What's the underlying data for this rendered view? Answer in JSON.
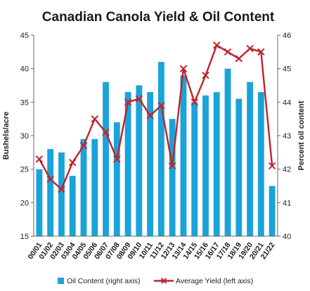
{
  "chart_data": {
    "type": "bar+line",
    "title": "Canadian Canola Yield & Oil Content",
    "categories": [
      "00/01",
      "01/02",
      "02/03",
      "03/04",
      "04/05",
      "05/06",
      "06/07",
      "07/08",
      "08/09",
      "09/10",
      "10/11",
      "11/12",
      "12/13",
      "13/14",
      "14/15",
      "15/16",
      "16/17",
      "17/18",
      "18/19",
      "19/20",
      "20/21",
      "21/22"
    ],
    "left_axis": {
      "label": "Bushels/acre",
      "min": 15,
      "max": 45,
      "ticks": [
        15,
        20,
        25,
        30,
        35,
        40,
        45
      ]
    },
    "right_axis": {
      "label": "Percent oil content",
      "min": 40,
      "max": 46,
      "ticks": [
        40,
        41,
        42,
        43,
        44,
        45,
        46
      ]
    },
    "series": [
      {
        "name": "Oil Content (right axis)",
        "kind": "bar",
        "axis": "right",
        "color": "#1aa3d9",
        "values": [
          42.0,
          42.6,
          42.5,
          41.8,
          42.9,
          42.9,
          44.6,
          43.4,
          44.3,
          44.5,
          44.3,
          45.2,
          43.5,
          44.8,
          44.0,
          44.2,
          44.3,
          45.0,
          44.1,
          44.6,
          44.3,
          41.5
        ]
      },
      {
        "name": "Average Yield (left axis)",
        "kind": "line",
        "axis": "left",
        "color": "#c0232c",
        "values": [
          26.5,
          23.5,
          22.0,
          26.0,
          28.5,
          32.5,
          30.5,
          26.5,
          35.0,
          35.5,
          33.0,
          34.5,
          25.5,
          40.0,
          35.0,
          39.0,
          43.5,
          42.5,
          41.5,
          43.0,
          42.5,
          25.5
        ]
      }
    ],
    "legend": {
      "position": "bottom",
      "items": [
        "Oil Content (right axis)",
        "Average Yield (left axis)"
      ]
    },
    "grid": false
  }
}
